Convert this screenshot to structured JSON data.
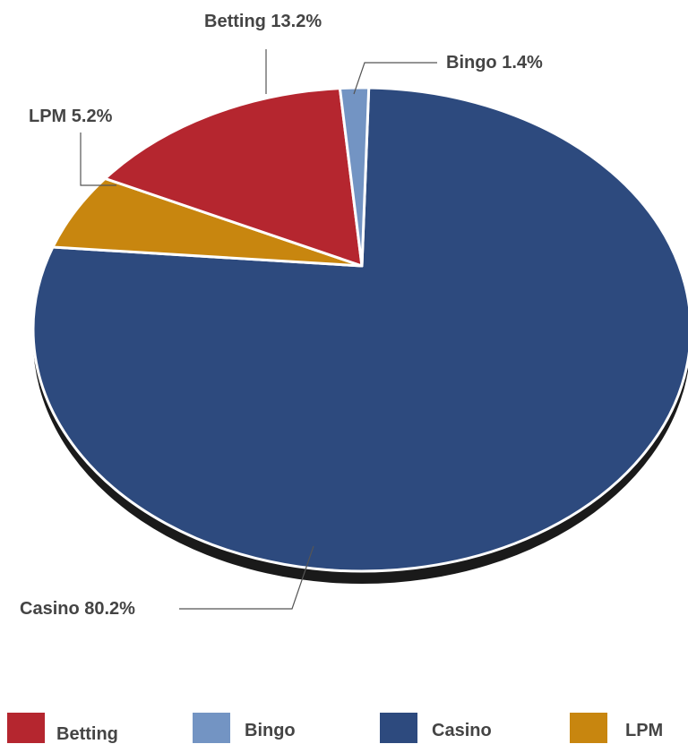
{
  "chart_data": {
    "type": "pie",
    "categories": [
      "Betting",
      "Bingo",
      "Casino",
      "LPM"
    ],
    "values": [
      13.2,
      1.4,
      80.2,
      5.2
    ],
    "colors": {
      "Betting": "#B5262F",
      "Bingo": "#7394C3",
      "Casino": "#2D4A7E",
      "LPM": "#C8860F"
    },
    "data_labels": {
      "Betting": "Betting 13.2%",
      "Bingo": "Bingo 1.4%",
      "Casino": "Casino 80.2%",
      "LPM": "LPM 5.2%"
    },
    "legend": {
      "placement": "bottom",
      "items": [
        "Betting",
        "Bingo",
        "Casino",
        "LPM"
      ]
    }
  }
}
